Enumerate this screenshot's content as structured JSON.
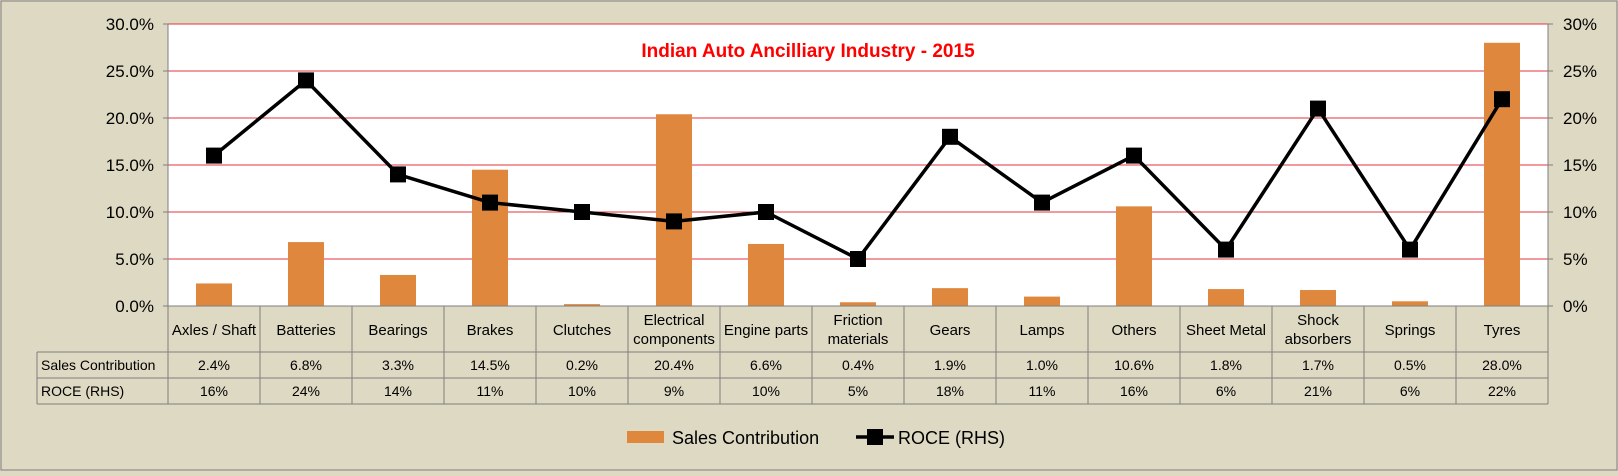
{
  "chart_data": {
    "type": "bar",
    "title": "Indian Auto Ancilliary Industry - 2015",
    "categories": [
      "Axles / Shaft",
      "Batteries",
      "Bearings",
      "Brakes",
      "Clutches",
      "Electrical components",
      "Engine parts",
      "Friction materials",
      "Gears",
      "Lamps",
      "Others",
      "Sheet Metal",
      "Shock absorbers",
      "Springs",
      "Tyres"
    ],
    "category_lines": [
      [
        "Axles / Shaft"
      ],
      [
        "Batteries"
      ],
      [
        "Bearings"
      ],
      [
        "Brakes"
      ],
      [
        "Clutches"
      ],
      [
        "Electrical",
        "components"
      ],
      [
        "Engine parts"
      ],
      [
        "Friction",
        "materials"
      ],
      [
        "Gears"
      ],
      [
        "Lamps"
      ],
      [
        "Others"
      ],
      [
        "Sheet Metal"
      ],
      [
        "Shock",
        "absorbers"
      ],
      [
        "Springs"
      ],
      [
        "Tyres"
      ]
    ],
    "series": [
      {
        "name": "Sales Contribution",
        "type": "bar",
        "axis": "left",
        "color": "#e0873e",
        "values": [
          2.4,
          6.8,
          3.3,
          14.5,
          0.2,
          20.4,
          6.6,
          0.4,
          1.9,
          1.0,
          10.6,
          1.8,
          1.7,
          0.5,
          28.0
        ],
        "labels": [
          "2.4%",
          "6.8%",
          "3.3%",
          "14.5%",
          "0.2%",
          "20.4%",
          "6.6%",
          "0.4%",
          "1.9%",
          "1.0%",
          "10.6%",
          "1.8%",
          "1.7%",
          "0.5%",
          "28.0%"
        ]
      },
      {
        "name": "ROCE (RHS)",
        "type": "line",
        "axis": "right",
        "color": "#000000",
        "values": [
          16,
          24,
          14,
          11,
          10,
          9,
          10,
          5,
          18,
          11,
          16,
          6,
          21,
          6,
          22
        ],
        "labels": [
          "16%",
          "24%",
          "14%",
          "11%",
          "10%",
          "9%",
          "10%",
          "5%",
          "18%",
          "11%",
          "16%",
          "6%",
          "21%",
          "6%",
          "22%"
        ]
      }
    ],
    "left_axis": {
      "ticks": [
        0,
        5,
        10,
        15,
        20,
        25,
        30
      ],
      "labels": [
        "0.0%",
        "5.0%",
        "10.0%",
        "15.0%",
        "20.0%",
        "25.0%",
        "30.0%"
      ],
      "ylim": [
        0,
        30
      ]
    },
    "right_axis": {
      "ticks": [
        0,
        5,
        10,
        15,
        20,
        25,
        30
      ],
      "labels": [
        "0%",
        "5%",
        "10%",
        "15%",
        "20%",
        "25%",
        "30%"
      ],
      "ylim": [
        0,
        30
      ]
    },
    "grid": true,
    "grid_color": "#e0363c",
    "title_color": "#ff0000",
    "legend_position": "bottom",
    "data_table": true
  }
}
